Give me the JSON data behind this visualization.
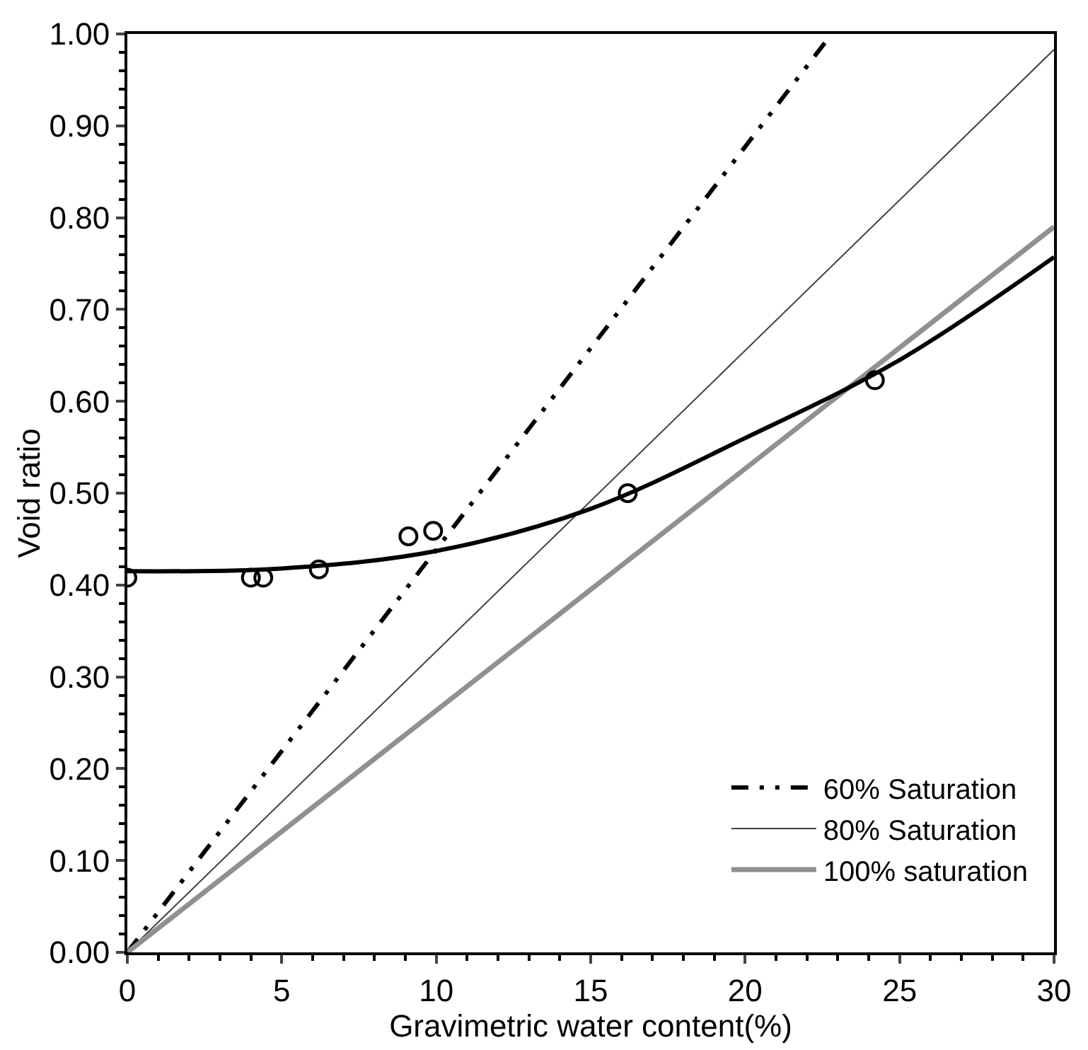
{
  "chart_data": {
    "type": "scatter",
    "xlabel": "Gravimetric water content(%)",
    "ylabel": "Void ratio",
    "xlim": [
      0,
      30
    ],
    "ylim": [
      0,
      1
    ],
    "xticks": [
      0,
      5,
      10,
      15,
      20,
      25,
      30
    ],
    "yticks": [
      {
        "value": 0,
        "label": "0.00"
      },
      {
        "value": 0.1,
        "label": "0.10"
      },
      {
        "value": 0.2,
        "label": "0.20"
      },
      {
        "value": 0.3,
        "label": "0.30"
      },
      {
        "value": 0.4,
        "label": "0.40"
      },
      {
        "value": 0.5,
        "label": "0.50"
      },
      {
        "value": 0.6,
        "label": "0.60"
      },
      {
        "value": 0.7,
        "label": "0.70"
      },
      {
        "value": 0.8,
        "label": "0.80"
      },
      {
        "value": 0.9,
        "label": "0.90"
      },
      {
        "value": 1.0,
        "label": "1.00"
      }
    ],
    "legend": "bottom right",
    "series": [
      {
        "type": "line",
        "name": "60% Saturation",
        "color": "#000000",
        "line_style": "dashed",
        "x": [
          0,
          22.8
        ],
        "values": [
          0,
          1.0
        ]
      },
      {
        "type": "line",
        "name": "80% Saturation",
        "color": "#404040",
        "line_style": "solid",
        "x": [
          0,
          30
        ],
        "values": [
          0,
          0.983
        ]
      },
      {
        "type": "line",
        "name": "100% saturation",
        "color": "#909090",
        "line_style": "solid",
        "x": [
          0,
          30
        ],
        "values": [
          0,
          0.79
        ]
      },
      {
        "type": "line",
        "color": "#000000",
        "line_style": "solid",
        "x": [
          0,
          5,
          10,
          15,
          20,
          25,
          30
        ],
        "values": [
          0.415,
          0.418,
          0.437,
          0.483,
          0.56,
          0.645,
          0.757
        ]
      },
      {
        "color": "#000000",
        "marker": "circle",
        "x": [
          0,
          4.0,
          4.4,
          6.2,
          9.1,
          9.9,
          16.2,
          24.2
        ],
        "values": [
          0.408,
          0.408,
          0.408,
          0.417,
          0.453,
          0.459,
          0.5,
          0.623
        ]
      }
    ]
  }
}
